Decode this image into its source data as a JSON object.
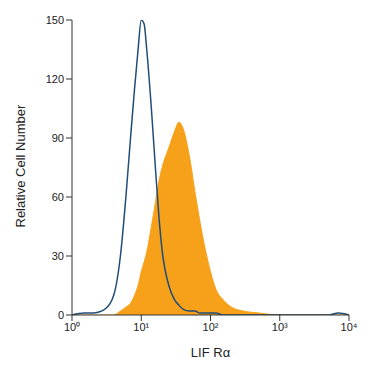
{
  "chart_data": {
    "type": "area",
    "x_label": "LIF Rα",
    "y_label": "Relative Cell Number",
    "log": "x",
    "grid": false,
    "xlim": [
      1,
      10000
    ],
    "xticks": [
      {
        "value": 1,
        "label": "10⁰"
      },
      {
        "value": 10,
        "label": "10¹"
      },
      {
        "value": 100,
        "label": "10²"
      },
      {
        "value": 1000,
        "label": "10³"
      },
      {
        "value": 10000,
        "label": "10⁴"
      }
    ],
    "ylim": [
      0,
      150
    ],
    "yticks": [
      0,
      30,
      60,
      90,
      120,
      150
    ],
    "x": [
      1,
      1.5,
      2,
      3,
      4,
      5,
      6,
      7,
      8,
      9,
      10,
      11,
      12,
      14,
      16,
      18,
      20,
      25,
      30,
      35,
      40,
      50,
      60,
      70,
      80,
      100,
      120,
      150,
      200,
      300,
      500,
      1000,
      2000,
      5000,
      7000,
      10000
    ],
    "series": [
      {
        "type": "area",
        "color": "#f7a11a",
        "values": [
          0,
          0,
          0,
          0,
          0,
          2,
          4,
          6,
          10,
          15,
          22,
          27,
          32,
          45,
          57,
          68,
          75,
          85,
          93,
          98,
          95,
          80,
          62,
          48,
          37,
          22,
          13,
          8,
          4,
          2,
          1,
          0,
          0,
          0,
          0,
          0
        ]
      },
      {
        "type": "line",
        "color": "#1f4e79",
        "values": [
          0,
          1,
          1,
          3,
          10,
          30,
          60,
          90,
          115,
          135,
          150,
          148,
          135,
          105,
          75,
          50,
          33,
          15,
          8,
          5,
          3,
          2,
          2,
          1,
          1,
          1,
          1,
          0,
          0,
          0,
          0,
          0,
          0,
          0,
          1,
          0
        ]
      }
    ]
  }
}
